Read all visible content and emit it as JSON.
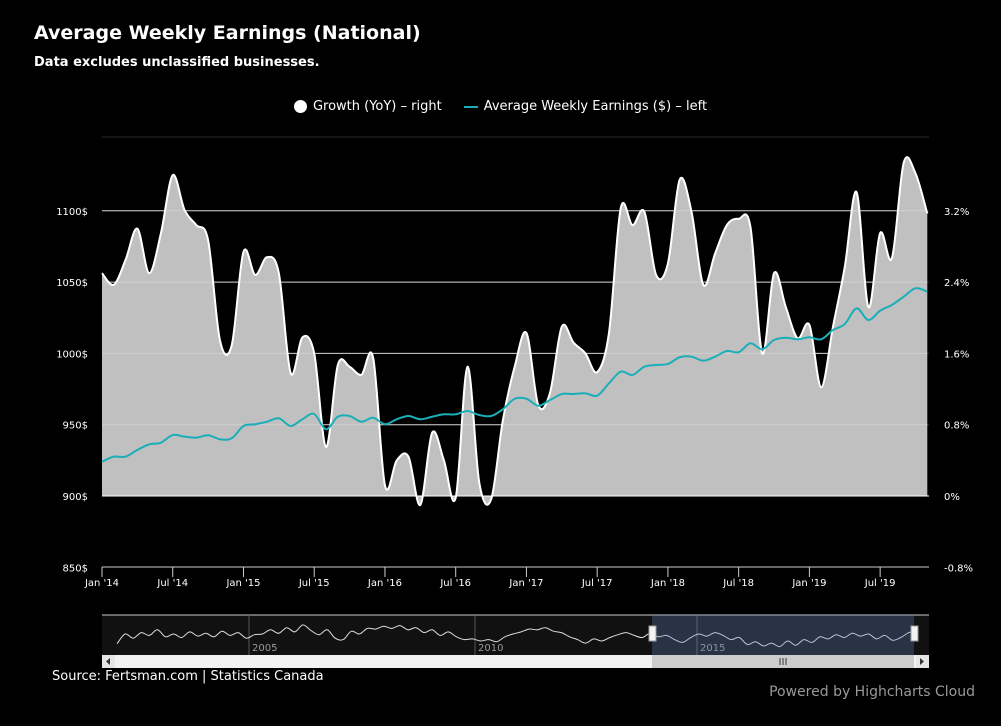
{
  "header": {
    "title": "Average Weekly Earnings (National)",
    "subtitle": "Data excludes unclassified businesses."
  },
  "footer": {
    "source": "Source: Fertsman.com | Statistics Canada",
    "credits": "Powered by Highcharts Cloud"
  },
  "chart_data": {
    "type": "area+line",
    "legend_position": "top-center",
    "grid": true,
    "x_start": "2014-01",
    "x_end": "2019-11",
    "x_interval": "monthly",
    "x_ticks": [
      "Jan '14",
      "Jul '14",
      "Jan '15",
      "Jul '15",
      "Jan '16",
      "Jul '16",
      "Jan '17",
      "Jul '17",
      "Jan '18",
      "Jul '18",
      "Jan '19",
      "Jul '19"
    ],
    "y_left": {
      "ylim": [
        850,
        1150
      ],
      "ticks": [
        "850$",
        "900$",
        "950$",
        "1000$",
        "1050$",
        "1100$"
      ]
    },
    "y_right": {
      "ylim": [
        -0.8,
        3.2
      ],
      "ticks": [
        "-0.8%",
        "0%",
        "0.8%",
        "1.6%",
        "2.4%",
        "3.2%"
      ]
    },
    "colors": {
      "growth_fill": "#c0c0c0",
      "growth_line": "#ffffff",
      "earnings": "#1aafb8",
      "background": "#000000"
    },
    "series": [
      {
        "name": "Growth (YoY) – right",
        "type": "areaspline",
        "axis": "right",
        "unit": "%",
        "values": [
          2.5,
          2.37,
          2.65,
          3.0,
          2.5,
          2.95,
          3.6,
          3.21,
          3.04,
          2.87,
          1.75,
          1.69,
          2.74,
          2.48,
          2.68,
          2.5,
          1.38,
          1.78,
          1.6,
          0.55,
          1.47,
          1.45,
          1.36,
          1.55,
          0.12,
          0.4,
          0.44,
          -0.1,
          0.71,
          0.4,
          -0.02,
          1.45,
          0.15,
          -0.04,
          0.85,
          1.45,
          1.83,
          1.02,
          1.16,
          1.9,
          1.72,
          1.6,
          1.39,
          1.83,
          3.23,
          3.04,
          3.19,
          2.48,
          2.61,
          3.55,
          3.19,
          2.37,
          2.72,
          3.04,
          3.11,
          3.02,
          1.6,
          2.5,
          2.12,
          1.77,
          1.92,
          1.22,
          1.9,
          2.57,
          3.41,
          2.12,
          2.95,
          2.67,
          3.74,
          3.62,
          3.17
        ]
      },
      {
        "name": "Average Weekly Earnings ($) – left",
        "type": "spline",
        "axis": "left",
        "unit": "$",
        "values": [
          924.1,
          927.6,
          927.6,
          932.3,
          936.2,
          937.4,
          942.8,
          941.6,
          940.9,
          942.6,
          939.8,
          940.5,
          949.1,
          950.3,
          952.1,
          954.5,
          949.1,
          953.8,
          957.5,
          946.8,
          955.6,
          956.1,
          952.1,
          954.9,
          950.3,
          953.8,
          956.1,
          953.8,
          955.6,
          957.3,
          957.3,
          959.6,
          956.8,
          956.1,
          960.8,
          968.2,
          968.2,
          963.3,
          967.3,
          971.5,
          971.5,
          972.0,
          970.4,
          979.0,
          987.2,
          984.9,
          990.7,
          991.9,
          992.6,
          997.3,
          997.7,
          994.9,
          997.7,
          1001.7,
          1000.8,
          1007.1,
          1002.9,
          1009.4,
          1011.0,
          1009.9,
          1011.3,
          1009.9,
          1016.4,
          1020.6,
          1031.6,
          1023.4,
          1030.0,
          1034.0,
          1039.8,
          1045.7,
          1043.3
        ]
      }
    ],
    "navigator": {
      "labels": [
        "2005",
        "2010",
        "2015"
      ],
      "selected_range": [
        "2014-01",
        "2019-11"
      ],
      "values": [
        0.6,
        2.0,
        1.4,
        2.2,
        1.8,
        2.6,
        1.6,
        2.0,
        1.5,
        2.3,
        1.7,
        2.1,
        1.6,
        2.4,
        1.8,
        2.2,
        1.4,
        1.9,
        2.0,
        2.6,
        2.1,
        2.9,
        2.3,
        3.3,
        2.5,
        1.9,
        2.6,
        1.4,
        1.2,
        2.4,
        2.0,
        2.8,
        2.7,
        3.1,
        2.8,
        3.2,
        2.6,
        2.9,
        2.2,
        2.6,
        1.8,
        2.3,
        1.6,
        1.2,
        1.3,
        1.0,
        1.2,
        0.9,
        1.6,
        2.0,
        2.3,
        2.7,
        2.6,
        2.9,
        2.4,
        2.2,
        1.6,
        1.2,
        0.7,
        1.3,
        1.0,
        1.5,
        1.9,
        2.2,
        1.8,
        1.5,
        2.1,
        1.6,
        1.8,
        1.2,
        0.8,
        1.5,
        2.0,
        1.7,
        2.2,
        1.8,
        1.2,
        1.5,
        0.5,
        0.9,
        0.3,
        0.7,
        0.2,
        1.0,
        0.4,
        1.2,
        0.8,
        1.6,
        1.3,
        1.9,
        1.5,
        2.1,
        1.7,
        2.0,
        1.3,
        1.8,
        1.1,
        1.5,
        2.2,
        2.5
      ]
    }
  },
  "legend": {
    "growth": "Growth (YoY) – right",
    "earnings": "Average Weekly Earnings ($) – left"
  }
}
